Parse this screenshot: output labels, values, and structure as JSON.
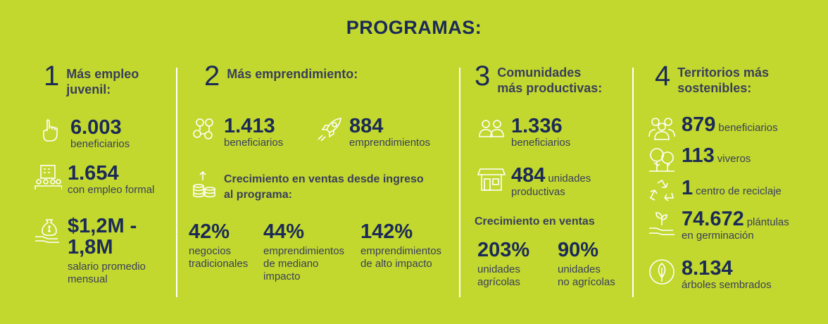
{
  "title": "PROGRAMAS:",
  "programs": [
    {
      "number": "1",
      "heading": [
        "Más empleo",
        "juvenil:"
      ],
      "stats": [
        {
          "icon": "pointing-hand-icon",
          "value": "6.003",
          "label": [
            "beneficiarios"
          ]
        },
        {
          "icon": "office-building-people-icon",
          "value": "1.654",
          "label": [
            "con empleo formal"
          ]
        },
        {
          "icon": "money-bag-hand-icon",
          "value_lines": [
            "$1,2M -",
            "1,8M"
          ],
          "label": [
            "salario promedio",
            "mensual"
          ]
        }
      ]
    },
    {
      "number": "2",
      "heading": [
        "Más emprendimiento:"
      ],
      "stats": [
        {
          "icon": "people-network-icon",
          "value": "1.413",
          "label": [
            "beneficiarios"
          ]
        },
        {
          "icon": "rocket-icon",
          "value": "884",
          "label": [
            "emprendimientos"
          ]
        }
      ],
      "growth": {
        "icon": "coins-growth-icon",
        "title": [
          "Crecimiento en ventas desde ingreso",
          "al programa:"
        ],
        "items": [
          {
            "value": "42%",
            "label": [
              "negocios",
              "tradicionales"
            ]
          },
          {
            "value": "44%",
            "label": [
              "emprendimientos",
              "de mediano",
              "impacto"
            ]
          },
          {
            "value": "142%",
            "label": [
              "emprendimientos",
              "de alto impacto"
            ]
          }
        ]
      }
    },
    {
      "number": "3",
      "heading": [
        "Comunidades",
        "más productivas:"
      ],
      "stats": [
        {
          "icon": "community-people-icon",
          "value": "1.336",
          "label": [
            "beneficiarios"
          ]
        },
        {
          "icon": "storefront-icon",
          "value": "484",
          "inline": "unidades",
          "label": [
            "productivas"
          ]
        }
      ],
      "growth": {
        "title": [
          "Crecimiento en ventas"
        ],
        "items": [
          {
            "value": "203%",
            "label": [
              "unidades",
              "agrícolas"
            ]
          },
          {
            "value": "90%",
            "label": [
              "unidades",
              "no agrícolas"
            ]
          }
        ]
      }
    },
    {
      "number": "4",
      "heading": [
        "Territorios más",
        "sostenibles:"
      ],
      "stats": [
        {
          "icon": "group-people-icon",
          "value": "879",
          "inline": "beneficiarios"
        },
        {
          "icon": "trees-icon",
          "value": "113",
          "inline": "viveros"
        },
        {
          "icon": "recycle-icon",
          "value": "1",
          "inline": "centro de reciclaje"
        },
        {
          "icon": "seedling-hand-icon",
          "value": "74.672",
          "inline": "plántulas",
          "label": [
            "en germinación"
          ]
        },
        {
          "icon": "leaf-circle-icon",
          "value": "8.134",
          "label": [
            "árboles sembrados"
          ]
        }
      ]
    }
  ],
  "colors": {
    "background": "#c2d82e",
    "primary": "#1b2a57",
    "secondary": "#3a3f5a",
    "divider": "#ffffff"
  }
}
